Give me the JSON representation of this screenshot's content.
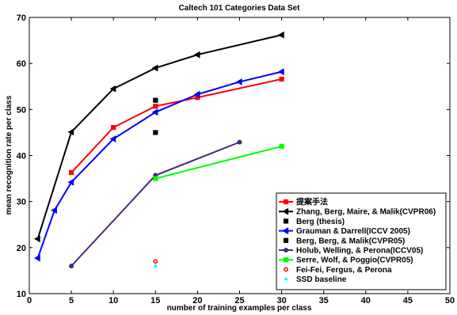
{
  "chart_data": {
    "type": "line",
    "title": "Caltech 101 Categories Data Set",
    "xlabel": "number of training examples per class",
    "ylabel": "mean recognition rate per class",
    "xlim": [
      0,
      50
    ],
    "ylim": [
      10,
      70
    ],
    "xticks": [
      "0",
      "5",
      "10",
      "15",
      "20",
      "25",
      "30",
      "35",
      "40",
      "45",
      "50"
    ],
    "yticks": [
      "10",
      "20",
      "30",
      "40",
      "50",
      "60",
      "70"
    ],
    "grid": false,
    "legend_position": "bottom-right",
    "series": [
      {
        "name": "提案手法",
        "color": "#ff0000",
        "marker": "square",
        "line": true,
        "x": [
          5,
          10,
          15,
          20,
          30
        ],
        "y": [
          36.3,
          46.1,
          50.7,
          52.6,
          56.6
        ]
      },
      {
        "name": "Zhang, Berg, Maire, & Malik(CVPR06)",
        "color": "#000000",
        "marker": "triangle-left",
        "line": true,
        "x": [
          1,
          5,
          10,
          15,
          20,
          30
        ],
        "y": [
          21.9,
          45.1,
          54.5,
          59.0,
          61.9,
          66.2
        ]
      },
      {
        "name": "Berg (thesis)",
        "color": "#000000",
        "marker": "square",
        "line": false,
        "x": [
          15
        ],
        "y": [
          52.0
        ]
      },
      {
        "name": "Grauman & Darrell(ICCV 2005)",
        "color": "#0000ff",
        "marker": "triangle-left",
        "line": true,
        "x": [
          1,
          3,
          5,
          10,
          15,
          20,
          25,
          30
        ],
        "y": [
          17.7,
          28.1,
          34.2,
          43.6,
          49.4,
          53.3,
          56.0,
          58.2
        ]
      },
      {
        "name": "Berg, Berg, & Malik(CVPR05)",
        "color": "#000000",
        "marker": "square",
        "line": false,
        "x": [
          15
        ],
        "y": [
          45.0
        ]
      },
      {
        "name": "Holub, Welling, & Perona(ICCV05)",
        "color": "#4b2a7b",
        "marker": "circle",
        "line": true,
        "x": [
          5,
          15,
          25
        ],
        "y": [
          16.0,
          35.7,
          42.9
        ]
      },
      {
        "name": "Serre, Wolf, & Poggio(CVPR05)",
        "color": "#00ff00",
        "marker": "square",
        "line": true,
        "x": [
          15,
          30
        ],
        "y": [
          35.0,
          42.0
        ]
      },
      {
        "name": "Fei-Fei, Fergus, & Perona",
        "color": "#ff0000",
        "marker": "circle-open",
        "line": false,
        "x": [
          15
        ],
        "y": [
          17.0
        ]
      },
      {
        "name": "SSD baseline",
        "color": "#00ffff",
        "marker": "star",
        "line": false,
        "x": [
          15
        ],
        "y": [
          16.0
        ]
      }
    ]
  }
}
